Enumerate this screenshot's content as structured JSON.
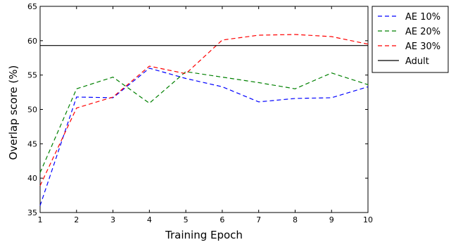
{
  "chart_data": {
    "type": "line",
    "title": "",
    "xlabel": "Training Epoch",
    "ylabel": "Overlap score (%)",
    "xlim": [
      1,
      10
    ],
    "ylim": [
      35,
      65
    ],
    "xticks": [
      1,
      2,
      3,
      4,
      5,
      6,
      7,
      8,
      9,
      10
    ],
    "yticks": [
      35,
      40,
      45,
      50,
      55,
      60,
      65
    ],
    "grid": false,
    "legend_position": "outside-right-top",
    "x": [
      1,
      2,
      3,
      4,
      5,
      6,
      7,
      8,
      9,
      10
    ],
    "series": [
      {
        "name": "AE 10%",
        "color": "#0000ff",
        "style": "dashed",
        "values": [
          36.0,
          51.8,
          51.7,
          56.0,
          54.5,
          53.3,
          51.1,
          51.6,
          51.7,
          53.3
        ]
      },
      {
        "name": "AE 20%",
        "color": "#008000",
        "style": "dashed",
        "values": [
          40.8,
          53.0,
          54.7,
          50.9,
          55.5,
          54.7,
          53.9,
          53.0,
          55.3,
          53.6
        ]
      },
      {
        "name": "AE 30%",
        "color": "#ff0000",
        "style": "dashed",
        "values": [
          38.9,
          50.2,
          51.8,
          56.3,
          55.2,
          60.1,
          60.8,
          60.9,
          60.6,
          59.5
        ]
      },
      {
        "name": "Adult",
        "color": "#000000",
        "style": "solid",
        "constant": 59.3
      }
    ]
  }
}
